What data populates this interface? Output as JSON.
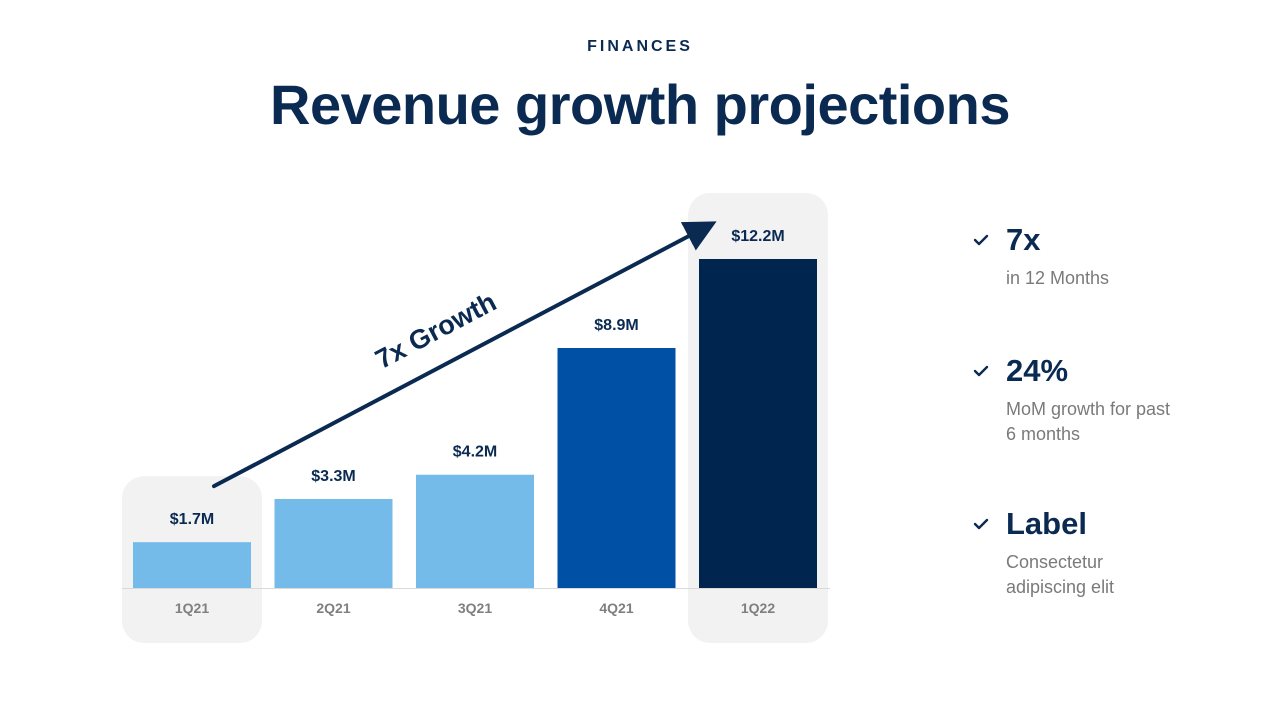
{
  "header": {
    "eyebrow": "FINANCES",
    "title": "Revenue growth projections"
  },
  "chart_data": {
    "type": "bar",
    "title": "Revenue growth projections",
    "categories": [
      "1Q21",
      "2Q21",
      "3Q21",
      "4Q21",
      "1Q22"
    ],
    "values": [
      1.7,
      3.3,
      4.2,
      8.9,
      12.2
    ],
    "value_labels": [
      "$1.7M",
      "$3.3M",
      "$4.2M",
      "$8.9M",
      "$12.2M"
    ],
    "unit": "$M",
    "ylim": [
      0,
      12.2
    ],
    "grid": false,
    "legend": "none",
    "bar_colors": [
      "#74bbea",
      "#74bbea",
      "#74bbea",
      "#0050a5",
      "#00264f"
    ],
    "highlighted_categories": [
      "1Q21",
      "1Q22"
    ],
    "annotation": {
      "text": "7x Growth",
      "from": "1Q21",
      "to": "1Q22"
    }
  },
  "stats": [
    {
      "value": "7x",
      "description": "in 12 Months"
    },
    {
      "value": "24%",
      "description": "MoM growth for past 6 months"
    },
    {
      "value": "Label",
      "description": "Consectetur adipiscing elit"
    }
  ],
  "colors": {
    "navy": "#0b2a52",
    "highlight_bg": "#f2f2f2",
    "axis": "#d9d9d9",
    "tick_text": "#7f7f7f",
    "muted_text": "#7a7a7a"
  }
}
